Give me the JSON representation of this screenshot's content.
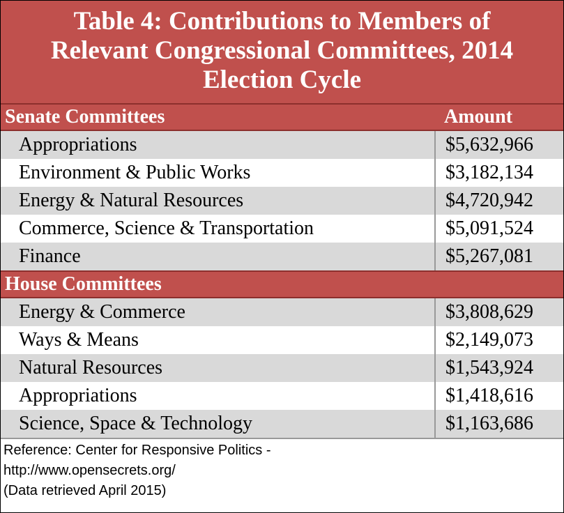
{
  "title_lines": [
    "Table 4: Contributions to Members of",
    "Relevant Congressional Committees, 2014",
    "Election Cycle"
  ],
  "table": {
    "sections": [
      {
        "header": "Senate Committees",
        "amount_header": "Amount",
        "rows": [
          [
            "Appropriations",
            "$5,632,966"
          ],
          [
            "Environment & Public Works",
            "$3,182,134"
          ],
          [
            "Energy & Natural Resources",
            "$4,720,942"
          ],
          [
            "Commerce, Science & Transportation",
            "$5,091,524"
          ],
          [
            "Finance",
            "$5,267,081"
          ]
        ]
      },
      {
        "header": "House Committees",
        "rows": [
          [
            "Energy & Commerce",
            "$3,808,629"
          ],
          [
            "Ways & Means",
            "$2,149,073"
          ],
          [
            "Natural Resources",
            "$1,543,924"
          ],
          [
            "Appropriations",
            "$1,418,616"
          ],
          [
            "Science, Space & Technology",
            "$1,163,686"
          ]
        ]
      }
    ]
  },
  "footer_lines": [
    "Reference: Center for Responsive Politics -",
    "http://www.opensecrets.org/",
    "(Data retrieved April 2015)"
  ]
}
